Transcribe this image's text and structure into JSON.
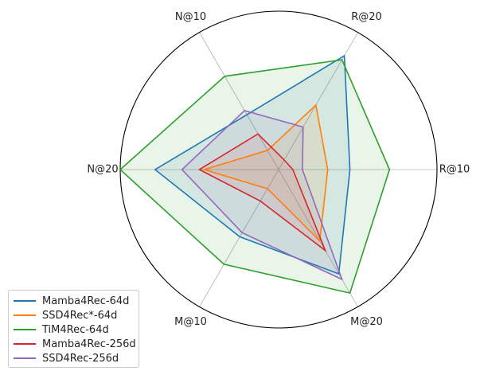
{
  "chart_data": {
    "type": "radar",
    "axes": [
      "R@10",
      "R@20",
      "N@10",
      "N@20",
      "M@10",
      "M@20"
    ],
    "range": [
      0,
      1
    ],
    "grid": true,
    "legend_position": "bottom-left",
    "series": [
      {
        "name": "Mamba4Rec-64d",
        "color": "#1f77b4",
        "values": [
          0.45,
          0.83,
          0.4,
          0.78,
          0.49,
          0.76
        ]
      },
      {
        "name": "SSD4Rec*-64d",
        "color": "#ff7f0e",
        "values": [
          0.31,
          0.47,
          0.14,
          0.47,
          0.14,
          0.52
        ]
      },
      {
        "name": "TiM4Rec-64d",
        "color": "#2ca02c",
        "values": [
          0.7,
          0.8,
          0.68,
          1.0,
          0.69,
          0.9
        ]
      },
      {
        "name": "Mamba4Rec-256d",
        "color": "#d62728",
        "values": [
          0.09,
          0.07,
          0.26,
          0.5,
          0.23,
          0.59
        ]
      },
      {
        "name": "SSD4Rec-256d",
        "color": "#9467bd",
        "values": [
          0.15,
          0.31,
          0.43,
          0.61,
          0.46,
          0.8
        ]
      }
    ]
  }
}
